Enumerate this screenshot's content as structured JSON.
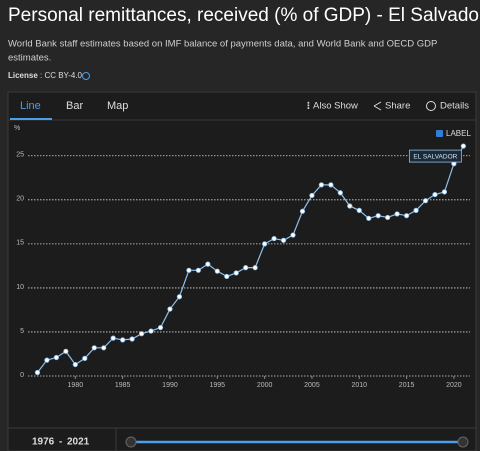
{
  "header": {
    "title": "Personal remittances, received (% of GDP) - El Salvador",
    "subtitle_line1": "World Bank staff estimates based on IMF balance of payments data, and World Bank and OECD GDP",
    "subtitle_line2": "estimates.",
    "license_label": "License",
    "license_value": ": CC BY-4.0"
  },
  "tabs": [
    "Line",
    "Bar",
    "Map"
  ],
  "actions": [
    "Also Show",
    "Share",
    "Details"
  ],
  "label_toggle": "LABEL",
  "range": {
    "start": "1976",
    "separator": "-",
    "end": "2021"
  },
  "chart_data": {
    "type": "line",
    "y_label": "%",
    "x": [
      1976,
      1977,
      1978,
      1979,
      1980,
      1981,
      1982,
      1983,
      1984,
      1985,
      1986,
      1987,
      1988,
      1989,
      1990,
      1991,
      1992,
      1993,
      1994,
      1995,
      1996,
      1997,
      1998,
      1999,
      2000,
      2001,
      2002,
      2003,
      2004,
      2005,
      2006,
      2007,
      2008,
      2009,
      2010,
      2011,
      2012,
      2013,
      2014,
      2015,
      2016,
      2017,
      2018,
      2019,
      2020,
      2021
    ],
    "series": [
      {
        "name": "EL SALVADOR",
        "color": "#8ec0ec",
        "values": [
          0.4,
          1.8,
          2.1,
          2.8,
          1.3,
          2.0,
          3.2,
          3.2,
          4.3,
          4.1,
          4.2,
          4.8,
          5.1,
          5.5,
          7.6,
          9.0,
          12.0,
          12.0,
          12.7,
          11.9,
          11.3,
          11.7,
          12.3,
          12.3,
          15.0,
          15.6,
          15.4,
          16.0,
          18.7,
          20.5,
          21.7,
          21.7,
          20.8,
          19.3,
          18.8,
          17.9,
          18.2,
          18.0,
          18.4,
          18.2,
          18.8,
          19.9,
          20.6,
          20.9,
          24.1,
          26.1
        ]
      }
    ],
    "xlim": [
      1975,
      2021.7
    ],
    "ylim": [
      0,
      27.7
    ],
    "xticks": [
      1980,
      1985,
      1990,
      1995,
      2000,
      2005,
      2010,
      2015,
      2020
    ],
    "yticks": [
      0,
      5,
      10,
      15,
      20,
      25
    ],
    "grid": true
  }
}
